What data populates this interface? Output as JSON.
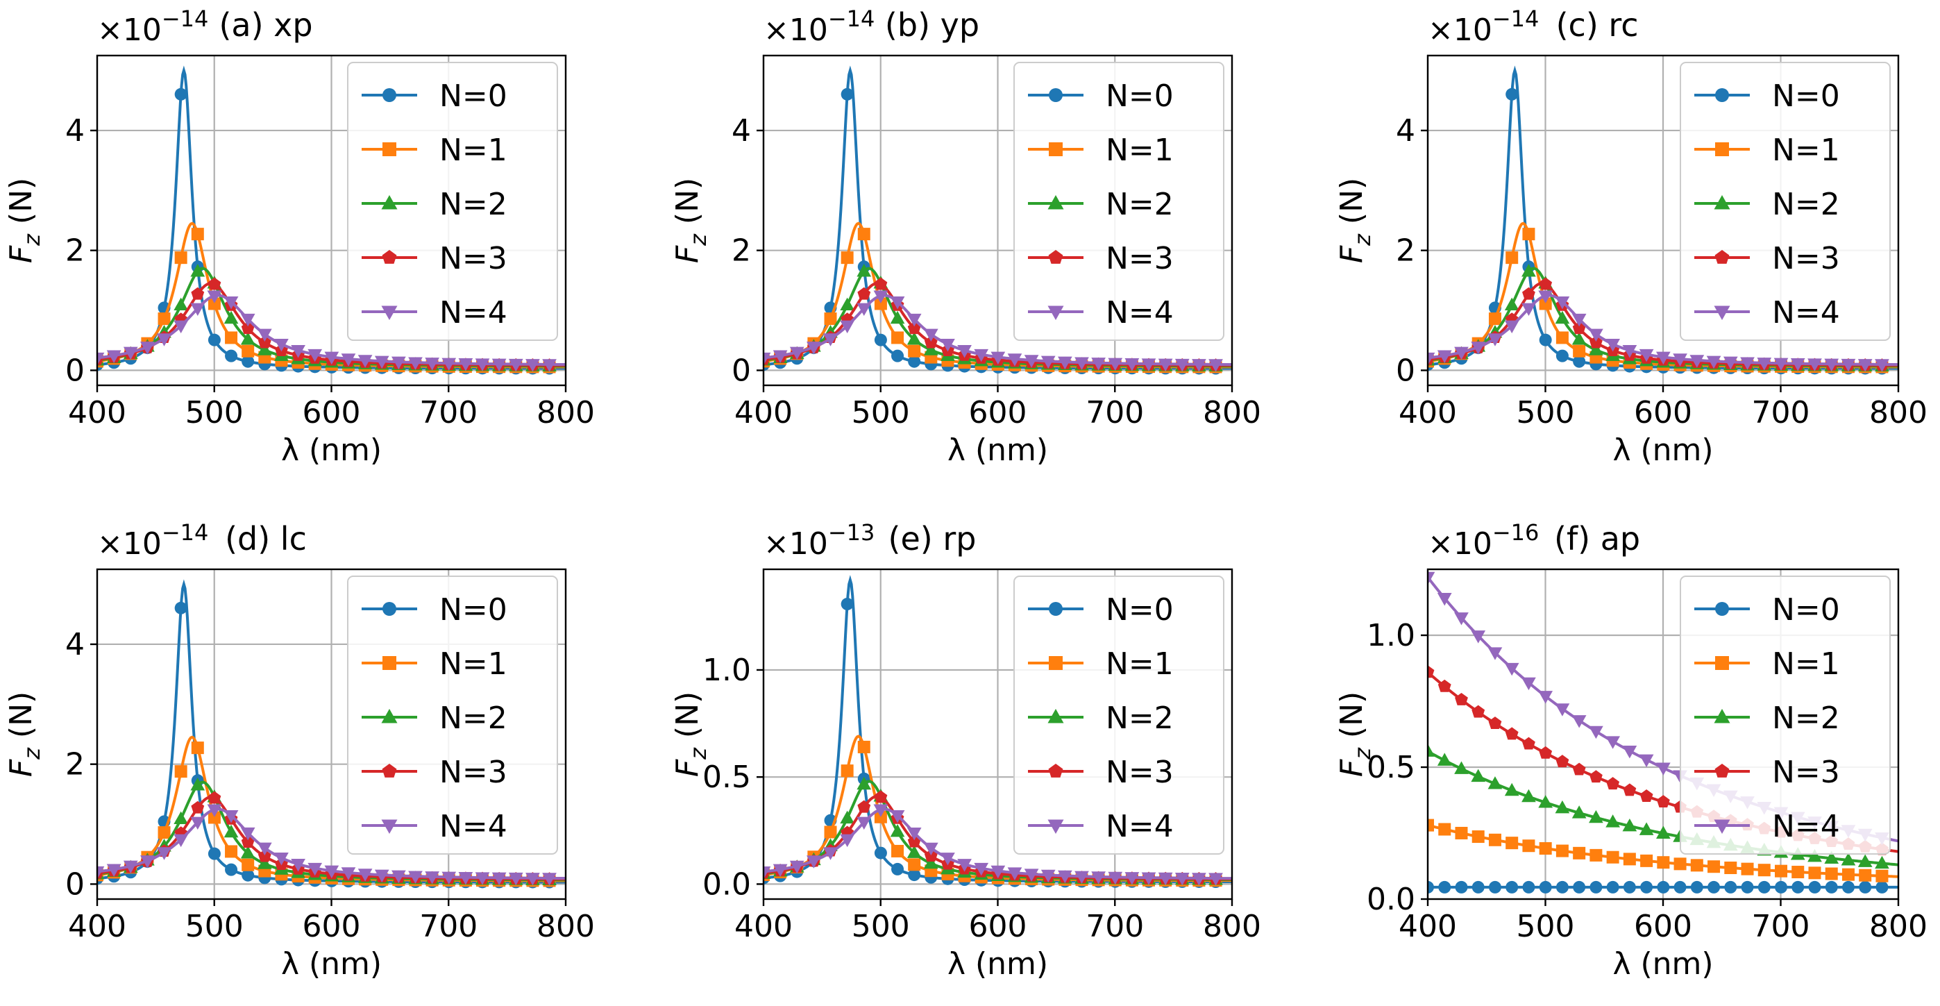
{
  "figure": {
    "xlabel": "λ (nm)",
    "ylabel_main": "F",
    "ylabel_sub": "z",
    "ylabel_unit": " (N)",
    "multiplier_prefix": "×10",
    "legend": [
      "N=0",
      "N=1",
      "N=2",
      "N=3",
      "N=4"
    ],
    "colors": [
      "#1f77b4",
      "#ff7f0e",
      "#2ca02c",
      "#d62728",
      "#9467bd"
    ],
    "markers": [
      "circle",
      "square",
      "triangle-up",
      "pentagon",
      "triangle-down"
    ]
  },
  "chart_data": [
    {
      "type": "line",
      "panel": "a",
      "title": "(a) xp",
      "exponent": "−14",
      "xlim": [
        400,
        800
      ],
      "ylim": [
        -0.25,
        5.25
      ],
      "xticks": [
        400,
        500,
        600,
        700,
        800
      ],
      "xticklabels": [
        "400",
        "500",
        "600",
        "700",
        "800"
      ],
      "yticks": [
        0,
        2,
        4
      ],
      "yticklabels": [
        "0",
        "2",
        "4"
      ],
      "xlabel": "λ (nm)",
      "series": [
        {
          "name": "N=0",
          "peak_x": 474,
          "peak_y": 5.0,
          "width": 8.5,
          "base": 0.03
        },
        {
          "name": "N=1",
          "peak_x": 481,
          "peak_y": 2.45,
          "width": 17,
          "base": 0.05
        },
        {
          "name": "N=2",
          "peak_x": 490,
          "peak_y": 1.7,
          "width": 24,
          "base": 0.06
        },
        {
          "name": "N=3",
          "peak_x": 497,
          "peak_y": 1.45,
          "width": 29,
          "base": 0.07
        },
        {
          "name": "N=4",
          "peak_x": 503,
          "peak_y": 1.25,
          "width": 36,
          "base": 0.08
        }
      ]
    },
    {
      "type": "line",
      "panel": "b",
      "title": "(b) yp",
      "exponent": "−14",
      "xlim": [
        400,
        800
      ],
      "ylim": [
        -0.25,
        5.25
      ],
      "xticks": [
        400,
        500,
        600,
        700,
        800
      ],
      "xticklabels": [
        "400",
        "500",
        "600",
        "700",
        "800"
      ],
      "yticks": [
        0,
        2,
        4
      ],
      "yticklabels": [
        "0",
        "2",
        "4"
      ],
      "xlabel": "λ (nm)",
      "series": [
        {
          "name": "N=0",
          "peak_x": 474,
          "peak_y": 5.0,
          "width": 8.5,
          "base": 0.03
        },
        {
          "name": "N=1",
          "peak_x": 481,
          "peak_y": 2.45,
          "width": 17,
          "base": 0.05
        },
        {
          "name": "N=2",
          "peak_x": 490,
          "peak_y": 1.7,
          "width": 24,
          "base": 0.06
        },
        {
          "name": "N=3",
          "peak_x": 497,
          "peak_y": 1.45,
          "width": 29,
          "base": 0.07
        },
        {
          "name": "N=4",
          "peak_x": 503,
          "peak_y": 1.25,
          "width": 36,
          "base": 0.08
        }
      ]
    },
    {
      "type": "line",
      "panel": "c",
      "title": "(c) rc",
      "exponent": "−14",
      "xlim": [
        400,
        800
      ],
      "ylim": [
        -0.25,
        5.25
      ],
      "xticks": [
        400,
        500,
        600,
        700,
        800
      ],
      "xticklabels": [
        "400",
        "500",
        "600",
        "700",
        "800"
      ],
      "yticks": [
        0,
        2,
        4
      ],
      "yticklabels": [
        "0",
        "2",
        "4"
      ],
      "xlabel": "λ (nm)",
      "series": [
        {
          "name": "N=0",
          "peak_x": 474,
          "peak_y": 5.0,
          "width": 8.5,
          "base": 0.03
        },
        {
          "name": "N=1",
          "peak_x": 481,
          "peak_y": 2.45,
          "width": 17,
          "base": 0.05
        },
        {
          "name": "N=2",
          "peak_x": 490,
          "peak_y": 1.7,
          "width": 24,
          "base": 0.06
        },
        {
          "name": "N=3",
          "peak_x": 497,
          "peak_y": 1.45,
          "width": 29,
          "base": 0.07
        },
        {
          "name": "N=4",
          "peak_x": 503,
          "peak_y": 1.25,
          "width": 36,
          "base": 0.08
        }
      ]
    },
    {
      "type": "line",
      "panel": "d",
      "title": "(d) lc",
      "exponent": "−14",
      "xlim": [
        400,
        800
      ],
      "ylim": [
        -0.25,
        5.25
      ],
      "xticks": [
        400,
        500,
        600,
        700,
        800
      ],
      "xticklabels": [
        "400",
        "500",
        "600",
        "700",
        "800"
      ],
      "yticks": [
        0,
        2,
        4
      ],
      "yticklabels": [
        "0",
        "2",
        "4"
      ],
      "xlabel": "λ (nm)",
      "series": [
        {
          "name": "N=0",
          "peak_x": 474,
          "peak_y": 5.0,
          "width": 8.5,
          "base": 0.03
        },
        {
          "name": "N=1",
          "peak_x": 481,
          "peak_y": 2.45,
          "width": 17,
          "base": 0.05
        },
        {
          "name": "N=2",
          "peak_x": 490,
          "peak_y": 1.7,
          "width": 24,
          "base": 0.06
        },
        {
          "name": "N=3",
          "peak_x": 497,
          "peak_y": 1.45,
          "width": 29,
          "base": 0.07
        },
        {
          "name": "N=4",
          "peak_x": 503,
          "peak_y": 1.25,
          "width": 36,
          "base": 0.08
        }
      ]
    },
    {
      "type": "line",
      "panel": "e",
      "title": "(e) rp",
      "exponent": "−13",
      "xlim": [
        400,
        800
      ],
      "ylim": [
        -0.07,
        1.47
      ],
      "xticks": [
        400,
        500,
        600,
        700,
        800
      ],
      "xticklabels": [
        "400",
        "500",
        "600",
        "700",
        "800"
      ],
      "yticks": [
        0.0,
        0.5,
        1.0
      ],
      "yticklabels": [
        "0.0",
        "0.5",
        "1.0"
      ],
      "xlabel": "λ (nm)",
      "series": [
        {
          "name": "N=0",
          "peak_x": 474,
          "peak_y": 1.42,
          "width": 8.5,
          "base": 0.01
        },
        {
          "name": "N=1",
          "peak_x": 481,
          "peak_y": 0.69,
          "width": 17,
          "base": 0.015
        },
        {
          "name": "N=2",
          "peak_x": 490,
          "peak_y": 0.48,
          "width": 24,
          "base": 0.018
        },
        {
          "name": "N=3",
          "peak_x": 497,
          "peak_y": 0.41,
          "width": 29,
          "base": 0.02
        },
        {
          "name": "N=4",
          "peak_x": 503,
          "peak_y": 0.35,
          "width": 36,
          "base": 0.022
        }
      ]
    },
    {
      "type": "line",
      "panel": "f",
      "title": "(f) ap",
      "exponent": "−16",
      "xlim": [
        400,
        800
      ],
      "ylim": [
        0.0,
        1.25
      ],
      "xticks": [
        400,
        500,
        600,
        700,
        800
      ],
      "xticklabels": [
        "400",
        "500",
        "600",
        "700",
        "800"
      ],
      "yticks": [
        0.0,
        0.5,
        1.0
      ],
      "yticklabels": [
        "0.0",
        "0.5",
        "1.0"
      ],
      "xlabel": "λ (nm)",
      "decay": true,
      "series": [
        {
          "name": "N=0",
          "start": 0.045,
          "end": 0.045
        },
        {
          "name": "N=1",
          "start": 0.28,
          "end": 0.085
        },
        {
          "name": "N=2",
          "start": 0.56,
          "end": 0.13
        },
        {
          "name": "N=3",
          "start": 0.86,
          "end": 0.18
        },
        {
          "name": "N=4",
          "start": 1.22,
          "end": 0.22
        }
      ]
    }
  ]
}
